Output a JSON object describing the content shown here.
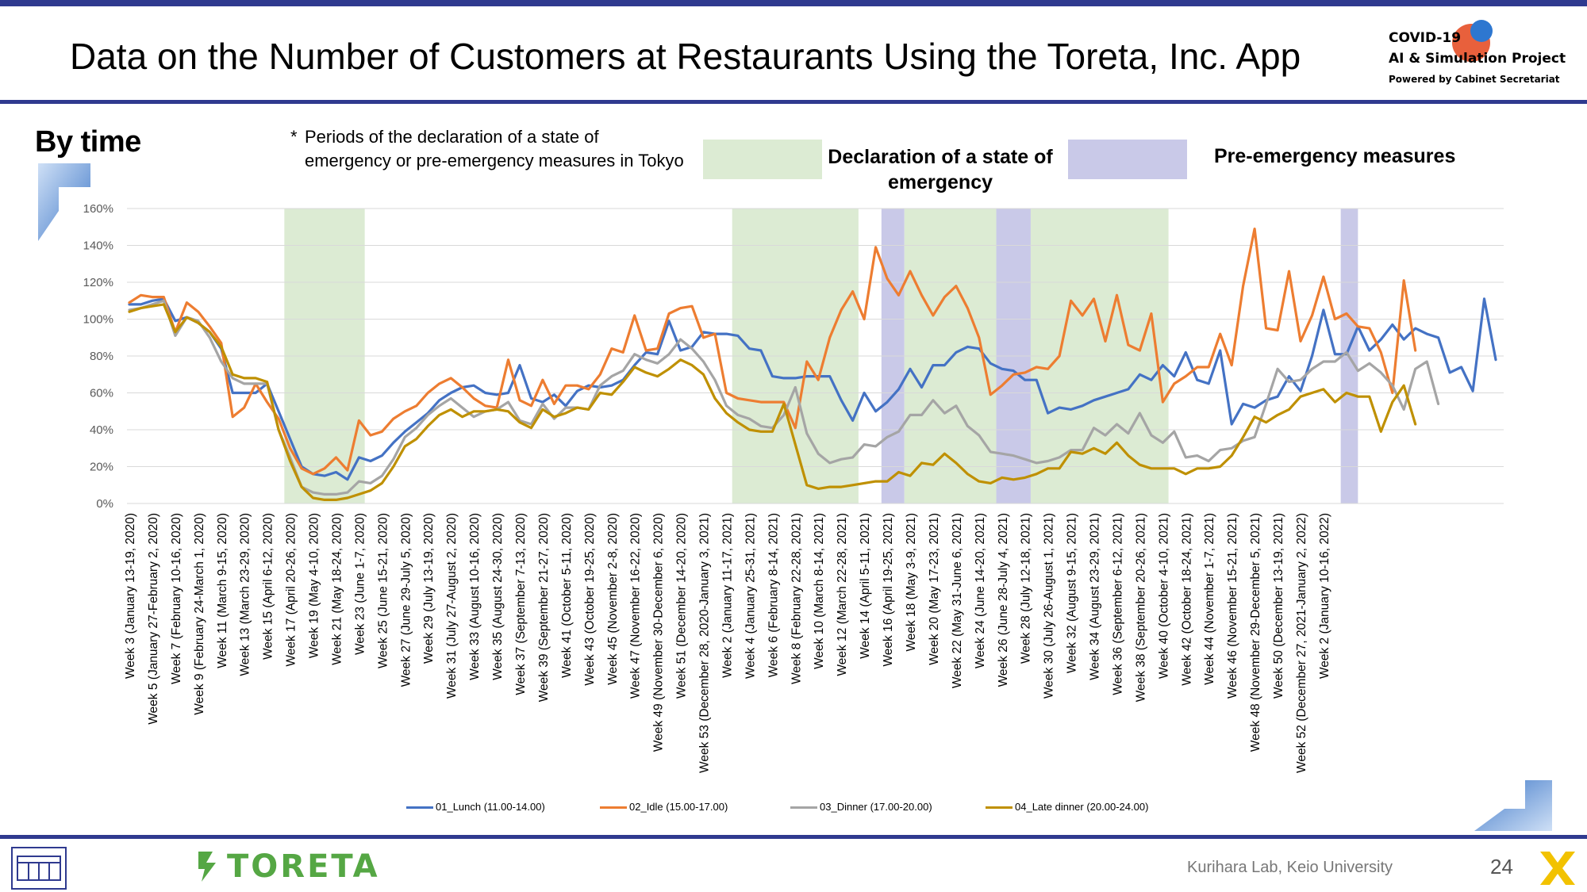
{
  "header": {
    "title": "Data on the Number of Customers at Restaurants Using the Toreta, Inc. App",
    "logo_line1": "COVID-19",
    "logo_line2": "AI & Simulation Project",
    "logo_line3": "Powered by Cabinet Secretariat"
  },
  "subtitle": "By time",
  "note_star": "*",
  "note": "Periods of the declaration of a state of emergency or pre-emergency measures in Tokyo",
  "legend_boxes": {
    "emergency": "Declaration of a state of emergency",
    "pre_emergency": "Pre-emergency measures"
  },
  "footer": {
    "brand": "TORETA",
    "lab": "Kurihara Lab, Keio University",
    "page": "24"
  },
  "colors": {
    "lunch": "#4472c4",
    "idle": "#ed7d31",
    "dinner": "#a5a5a5",
    "late_dinner": "#bf9000",
    "emergency_band": "#dcebd3",
    "pre_emergency_band": "#c9c9e8",
    "accent": "#2f3a8f"
  },
  "chart_data": {
    "type": "line",
    "xlabel": "",
    "ylabel": "",
    "ylim": [
      0,
      1.6
    ],
    "yticks": [
      "0%",
      "20%",
      "40%",
      "60%",
      "80%",
      "100%",
      "120%",
      "140%",
      "160%"
    ],
    "grid": true,
    "legend_position": "bottom",
    "x_labels": [
      "Week 3 (January 13-19, 2020)",
      "Week 5 (January 27-February 2, 2020)",
      "Week 7 (February 10-16, 2020)",
      "Week 9 (February 24-March 1, 2020)",
      "Week 11 (March 9-15, 2020)",
      "Week 13 (March 23-29, 2020)",
      "Week 15 (April 6-12, 2020)",
      "Week 17 (April 20-26, 2020)",
      "Week 19 (May 4-10, 2020)",
      "Week 21 (May 18-24, 2020)",
      "Week 23 (June 1-7, 2020)",
      "Week 25 (June 15-21, 2020)",
      "Week 27 (June 29-July 5, 2020)",
      "Week 29 (July 13-19, 2020)",
      "Week 31 (July 27-August 2, 2020)",
      "Week 33 (August 10-16, 2020)",
      "Week 35 (August 24-30, 2020)",
      "Week 37 (September 7-13, 2020)",
      "Week 39 (September 21-27, 2020)",
      "Week 41 (October 5-11, 2020)",
      "Week 43 (October 19-25, 2020)",
      "Week 45 (November 2-8, 2020)",
      "Week 47 (November 16-22, 2020)",
      "Week 49 (November 30-December 6, 2020)",
      "Week 51 (December 14-20, 2020)",
      "Week 53 (December 28, 2020-January 3, 2021)",
      "Week 2 (January 11-17, 2021)",
      "Week 4 (January 25-31, 2021)",
      "Week 6 (February 8-14, 2021)",
      "Week 8 (February 22-28, 2021)",
      "Week 10 (March 8-14, 2021)",
      "Week 12 (March 22-28, 2021)",
      "Week 14 (April 5-11, 2021)",
      "Week 16 (April 19-25, 2021)",
      "Week 18 (May 3-9, 2021)",
      "Week 20 (May 17-23, 2021)",
      "Week 22 (May 31-June 6, 2021)",
      "Week 24 (June 14-20, 2021)",
      "Week 26 (June 28-July 4, 2021)",
      "Week 28 (July 12-18, 2021)",
      "Week 30 (July 26-August 1, 2021)",
      "Week 32 (August 9-15, 2021)",
      "Week 34 (August 23-29, 2021)",
      "Week 36 (September 6-12, 2021)",
      "Week 38 (September 20-26, 2021)",
      "Week 40 (October 4-10, 2021)",
      "Week 42 (October 18-24, 2021)",
      "Week 44 (November 1-7, 2021)",
      "Week 46 (November 15-21, 2021)",
      "Week 48 (November 29-December 5, 2021)",
      "Week 50 (December 13-19, 2021)",
      "Week 52 (December 27, 2021-January 2, 2022)",
      "Week 2 (January 10-16, 2022)"
    ],
    "bands": [
      {
        "type": "emergency",
        "from": 13.5,
        "to": 20.5
      },
      {
        "type": "emergency",
        "from": 52.5,
        "to": 63.5
      },
      {
        "type": "pre_emergency",
        "from": 65.5,
        "to": 67.5
      },
      {
        "type": "emergency",
        "from": 67.5,
        "to": 75.5
      },
      {
        "type": "pre_emergency",
        "from": 75.5,
        "to": 78.5
      },
      {
        "type": "emergency",
        "from": 78.5,
        "to": 90.5
      },
      {
        "type": "pre_emergency",
        "from": 105.5,
        "to": 107
      }
    ],
    "series": [
      {
        "name": "01_Lunch (11.00-14.00)",
        "color_key": "lunch",
        "values": [
          1.08,
          1.08,
          1.1,
          1.11,
          0.99,
          1.01,
          0.98,
          0.93,
          0.84,
          0.6,
          0.6,
          0.6,
          0.65,
          0.5,
          0.35,
          0.2,
          0.16,
          0.15,
          0.17,
          0.13,
          0.25,
          0.23,
          0.26,
          0.33,
          0.39,
          0.44,
          0.49,
          0.56,
          0.6,
          0.63,
          0.64,
          0.6,
          0.59,
          0.6,
          0.75,
          0.57,
          0.55,
          0.59,
          0.53,
          0.61,
          0.64,
          0.63,
          0.64,
          0.67,
          0.75,
          0.82,
          0.81,
          0.99,
          0.83,
          0.85,
          0.93,
          0.92,
          0.92,
          0.91,
          0.84,
          0.83,
          0.69,
          0.68,
          0.68,
          0.69,
          0.69,
          0.69,
          0.56,
          0.45,
          0.6,
          0.5,
          0.55,
          0.62,
          0.73,
          0.63,
          0.75,
          0.75,
          0.82,
          0.85,
          0.84,
          0.76,
          0.73,
          0.72,
          0.67,
          0.67,
          0.49,
          0.52,
          0.51,
          0.53,
          0.56,
          0.58,
          0.6,
          0.62,
          0.7,
          0.67,
          0.75,
          0.69,
          0.82,
          0.67,
          0.65,
          0.83,
          0.43,
          0.54,
          0.52,
          0.56,
          0.58,
          0.69,
          0.61,
          0.8,
          1.05,
          0.81,
          0.81,
          0.96,
          0.83,
          0.89,
          0.97,
          0.89,
          0.95,
          0.92,
          0.9,
          0.71,
          0.74,
          0.61,
          1.11,
          0.78
        ]
      },
      {
        "name": "02_Idle (15.00-17.00)",
        "color_key": "idle",
        "values": [
          1.09,
          1.13,
          1.12,
          1.12,
          0.93,
          1.09,
          1.04,
          0.96,
          0.87,
          0.47,
          0.52,
          0.65,
          0.55,
          0.46,
          0.3,
          0.19,
          0.16,
          0.19,
          0.25,
          0.18,
          0.45,
          0.37,
          0.39,
          0.46,
          0.5,
          0.53,
          0.6,
          0.65,
          0.68,
          0.63,
          0.57,
          0.53,
          0.52,
          0.78,
          0.56,
          0.53,
          0.67,
          0.54,
          0.64,
          0.64,
          0.62,
          0.7,
          0.84,
          0.82,
          1.02,
          0.83,
          0.84,
          1.03,
          1.06,
          1.07,
          0.9,
          0.92,
          0.6,
          0.57,
          0.56,
          0.55,
          0.55,
          0.55,
          0.41,
          0.77,
          0.67,
          0.9,
          1.05,
          1.15,
          1.0,
          1.39,
          1.22,
          1.13,
          1.26,
          1.13,
          1.02,
          1.12,
          1.18,
          1.06,
          0.9,
          0.59,
          0.64,
          0.7,
          0.71,
          0.74,
          0.73,
          0.8,
          1.1,
          1.02,
          1.11,
          0.88,
          1.13,
          0.86,
          0.83,
          1.03,
          0.55,
          0.65,
          0.69,
          0.74,
          0.74,
          0.92,
          0.75,
          1.18,
          1.49,
          0.95,
          0.94,
          1.26,
          0.88,
          1.02,
          1.23,
          1.0,
          1.03,
          0.96,
          0.95,
          0.82,
          0.6,
          1.21,
          0.83
        ]
      },
      {
        "name": "03_Dinner (17.00-20.00)",
        "color_key": "dinner",
        "values": [
          1.05,
          1.06,
          1.08,
          1.1,
          0.91,
          1.01,
          0.99,
          0.9,
          0.77,
          0.68,
          0.65,
          0.65,
          0.65,
          0.4,
          0.25,
          0.09,
          0.06,
          0.05,
          0.05,
          0.06,
          0.12,
          0.11,
          0.15,
          0.24,
          0.36,
          0.41,
          0.48,
          0.53,
          0.57,
          0.52,
          0.47,
          0.5,
          0.51,
          0.55,
          0.45,
          0.43,
          0.54,
          0.46,
          0.52,
          0.52,
          0.51,
          0.64,
          0.69,
          0.72,
          0.81,
          0.78,
          0.76,
          0.81,
          0.89,
          0.84,
          0.77,
          0.67,
          0.53,
          0.48,
          0.46,
          0.42,
          0.41,
          0.48,
          0.63,
          0.38,
          0.27,
          0.22,
          0.24,
          0.25,
          0.32,
          0.31,
          0.36,
          0.39,
          0.48,
          0.48,
          0.56,
          0.49,
          0.53,
          0.42,
          0.37,
          0.28,
          0.27,
          0.26,
          0.24,
          0.22,
          0.23,
          0.25,
          0.29,
          0.29,
          0.41,
          0.37,
          0.43,
          0.38,
          0.49,
          0.37,
          0.33,
          0.39,
          0.25,
          0.26,
          0.23,
          0.29,
          0.3,
          0.34,
          0.36,
          0.54,
          0.73,
          0.66,
          0.67,
          0.73,
          0.77,
          0.77,
          0.82,
          0.72,
          0.76,
          0.71,
          0.64,
          0.51,
          0.73,
          0.77,
          0.54
        ]
      },
      {
        "name": "04_Late dinner (20.00-24.00)",
        "color_key": "late_dinner",
        "values": [
          1.04,
          1.06,
          1.07,
          1.08,
          0.93,
          1.01,
          0.98,
          0.93,
          0.85,
          0.7,
          0.68,
          0.68,
          0.66,
          0.4,
          0.23,
          0.09,
          0.03,
          0.02,
          0.02,
          0.03,
          0.05,
          0.07,
          0.11,
          0.2,
          0.31,
          0.35,
          0.42,
          0.48,
          0.51,
          0.47,
          0.5,
          0.5,
          0.51,
          0.5,
          0.44,
          0.41,
          0.51,
          0.47,
          0.49,
          0.52,
          0.51,
          0.6,
          0.59,
          0.66,
          0.74,
          0.71,
          0.69,
          0.73,
          0.78,
          0.75,
          0.7,
          0.57,
          0.49,
          0.44,
          0.4,
          0.39,
          0.39,
          0.54,
          0.32,
          0.1,
          0.08,
          0.09,
          0.09,
          0.1,
          0.11,
          0.12,
          0.12,
          0.17,
          0.15,
          0.22,
          0.21,
          0.27,
          0.22,
          0.16,
          0.12,
          0.11,
          0.14,
          0.13,
          0.14,
          0.16,
          0.19,
          0.19,
          0.28,
          0.27,
          0.3,
          0.27,
          0.33,
          0.26,
          0.21,
          0.19,
          0.19,
          0.19,
          0.16,
          0.19,
          0.19,
          0.2,
          0.26,
          0.36,
          0.47,
          0.44,
          0.48,
          0.51,
          0.58,
          0.6,
          0.62,
          0.55,
          0.6,
          0.58,
          0.58,
          0.39,
          0.55,
          0.64,
          0.43
        ]
      }
    ]
  }
}
